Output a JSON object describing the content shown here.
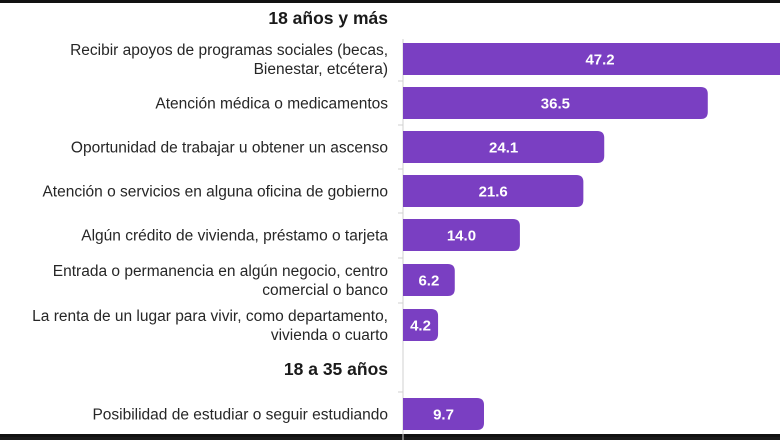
{
  "chart_data": {
    "type": "bar",
    "orientation": "horizontal",
    "bar_color": "#7a3fc2",
    "label_color": "#ffffff",
    "groups": [
      {
        "title": "18 años y más",
        "categories": [
          [
            "Recibir apoyos de programas sociales (becas,",
            "Bienestar, etcétera)"
          ],
          [
            "Atención médica o medicamentos"
          ],
          [
            "Oportunidad de trabajar u obtener un ascenso"
          ],
          [
            "Atención o servicios en alguna oficina de gobierno"
          ],
          [
            "Algún crédito de vivienda, préstamo o tarjeta"
          ],
          [
            "Entrada o permanencia en algún negocio, centro",
            "comercial o banco"
          ],
          [
            "La renta de un lugar para vivir, como departamento,",
            "vivienda o cuarto"
          ]
        ],
        "values": [
          47.2,
          36.5,
          24.1,
          21.6,
          14.0,
          6.2,
          4.2
        ],
        "value_labels": [
          "47.2",
          "36.5",
          "24.1",
          "21.6",
          "14.0",
          "6.2",
          "4.2"
        ]
      },
      {
        "title": "18 a 35 años",
        "categories": [
          [
            "Posibilidad de estudiar o seguir estudiando"
          ]
        ],
        "values": [
          9.7
        ],
        "value_labels": [
          "9.7"
        ]
      }
    ]
  }
}
